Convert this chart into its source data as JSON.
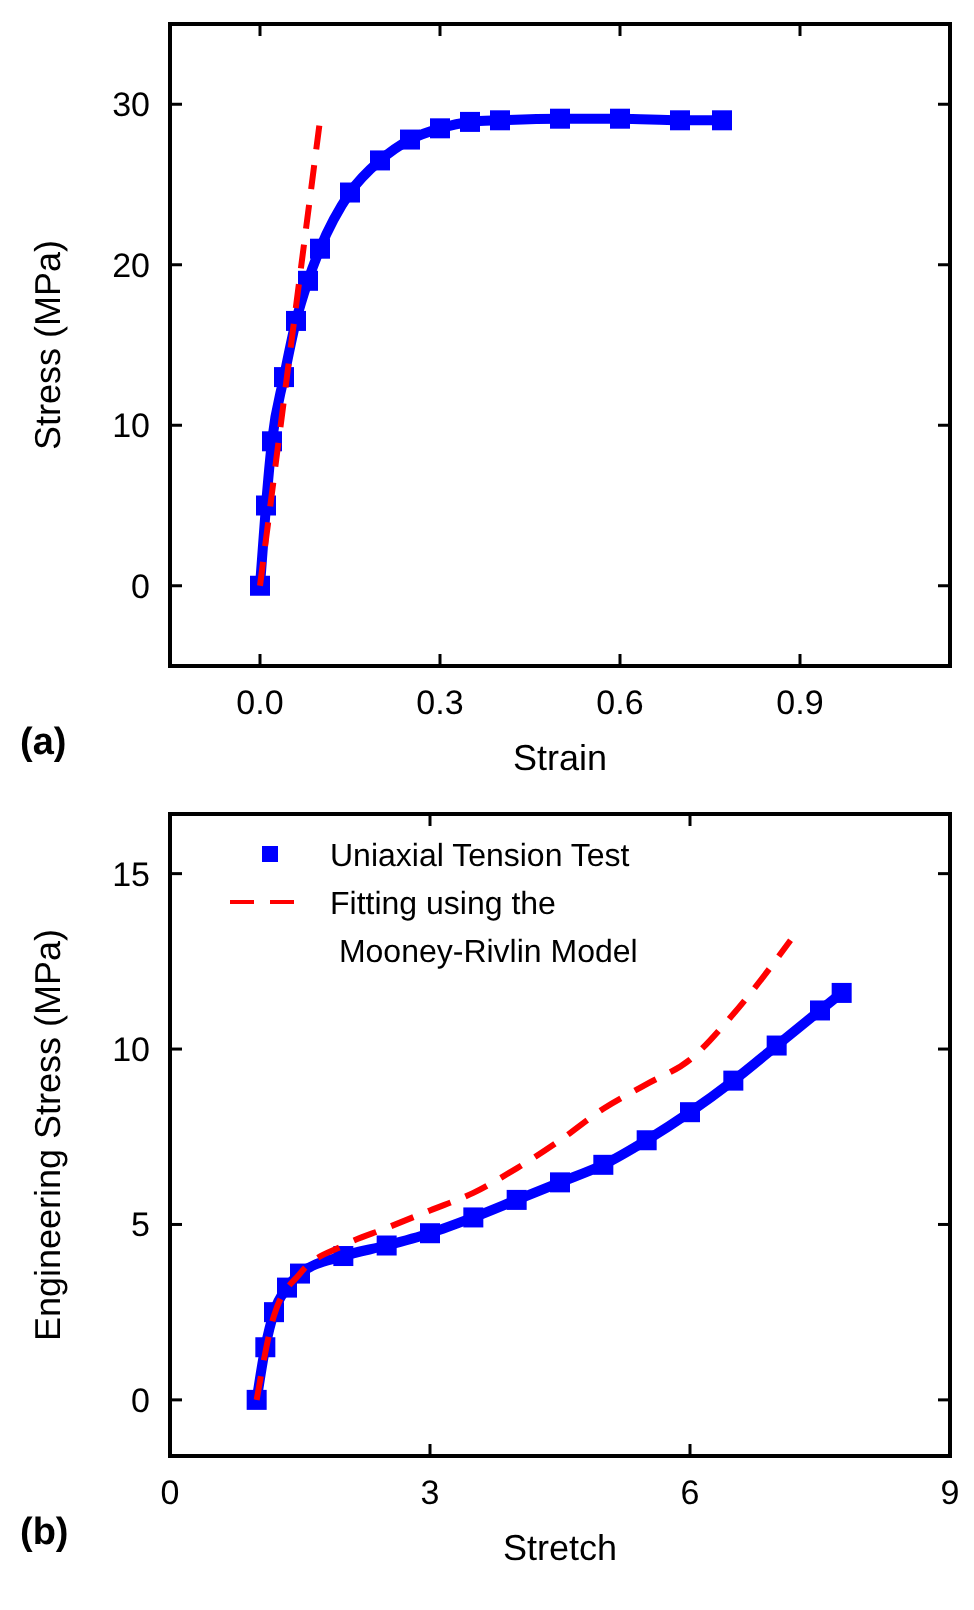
{
  "chart_data": [
    {
      "type": "line",
      "xlabel": "Strain",
      "ylabel": "Stress (MPa)",
      "xlim": [
        -0.15,
        1.15
      ],
      "ylim": [
        -5,
        35
      ],
      "xticks": [
        {
          "value": 0,
          "label": "0.0"
        },
        0.3,
        0.6,
        0.9
      ],
      "yticks": [
        0,
        10,
        20,
        30
      ],
      "grid": false,
      "legend": false,
      "annotations": [
        "(a)"
      ],
      "series": [
        {
          "color": "#0000ff",
          "marker": "square",
          "line_style": "solid",
          "x": [
            0,
            0.01,
            0.02,
            0.04,
            0.06,
            0.08,
            0.1,
            0.15,
            0.2,
            0.25,
            0.3,
            0.35,
            0.4,
            0.5,
            0.6,
            0.7,
            0.77
          ],
          "values": [
            0,
            5,
            9,
            13,
            16.5,
            19,
            21,
            24.5,
            26.5,
            27.8,
            28.5,
            28.9,
            29,
            29.1,
            29.1,
            29,
            29
          ]
        },
        {
          "color": "#ff0000",
          "marker": "none",
          "line_style": "dashed",
          "x": [
            0,
            0.1
          ],
          "values": [
            0,
            29
          ]
        }
      ]
    },
    {
      "type": "line",
      "xlabel": "Stretch",
      "ylabel": "Engineering Stress (MPa)",
      "xlim": [
        0,
        9
      ],
      "ylim": [
        -1.6,
        16.7
      ],
      "xticks": [
        0,
        3,
        6,
        9
      ],
      "yticks": [
        0,
        5,
        10,
        15
      ],
      "grid": false,
      "legend": "top left",
      "annotations": [
        "(b)"
      ],
      "series": [
        {
          "name": "Uniaxial Tension Test",
          "color": "#0000ff",
          "marker": "square",
          "line_style": "solid",
          "x": [
            1,
            1.1,
            1.2,
            1.35,
            1.5,
            2,
            2.5,
            3,
            3.5,
            4,
            4.5,
            5,
            5.5,
            6,
            6.5,
            7,
            7.5,
            7.75
          ],
          "values": [
            0,
            1.5,
            2.5,
            3.2,
            3.6,
            4.1,
            4.4,
            4.75,
            5.2,
            5.7,
            6.2,
            6.7,
            7.4,
            8.2,
            9.1,
            10.1,
            11.1,
            11.6
          ]
        },
        {
          "name": "Fitting using the\n Mooney-Rivlin Model",
          "color": "#ff0000",
          "marker": "none",
          "line_style": "dashed",
          "x": [
            1,
            1.2,
            1.5,
            2,
            2.5,
            3,
            3.5,
            4,
            4.5,
            5,
            5.5,
            6,
            6.5,
            7.16
          ],
          "values": [
            0,
            2.4,
            3.6,
            4.4,
            4.9,
            5.4,
            5.9,
            6.6,
            7.4,
            8.3,
            9.0,
            9.7,
            11.0,
            13.1
          ]
        }
      ]
    }
  ]
}
